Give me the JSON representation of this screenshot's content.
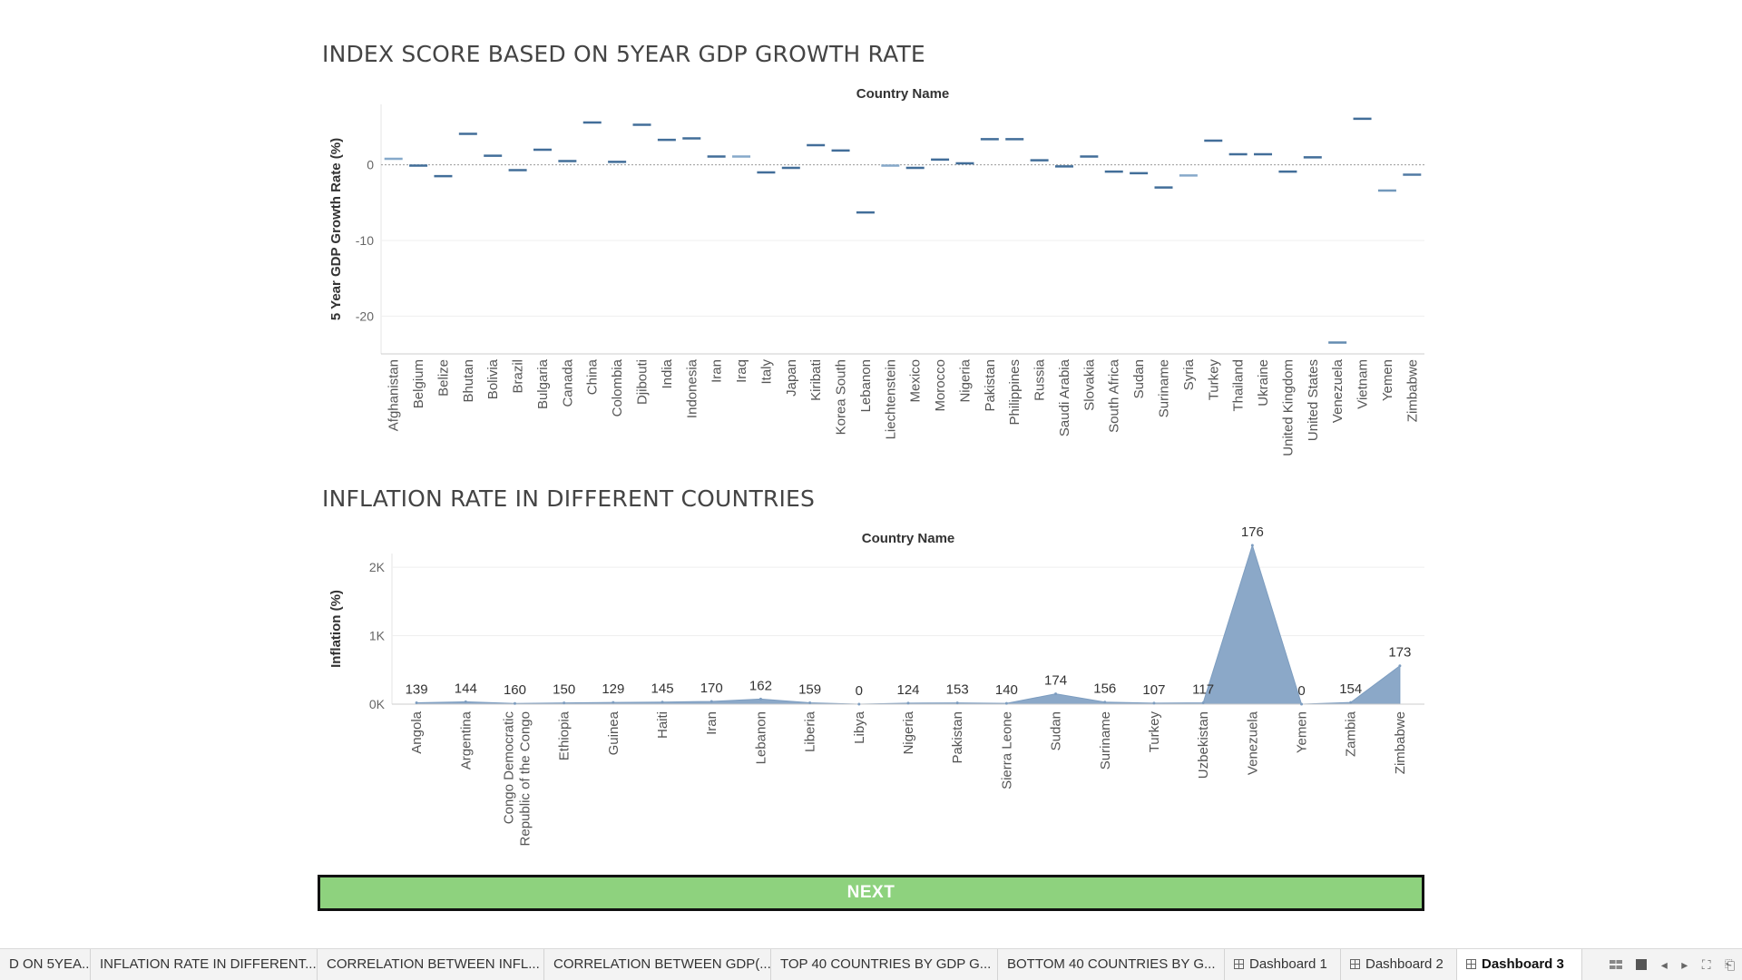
{
  "dashboard": {
    "chart1_title": "INDEX SCORE BASED ON 5YEAR GDP GROWTH RATE",
    "chart2_title": "INFLATION RATE IN DIFFERENT COUNTRIES",
    "next_label": "NEXT"
  },
  "chart_data": [
    {
      "type": "scatter",
      "mark": "dash",
      "title": "INDEX SCORE BASED ON 5YEAR GDP GROWTH RATE",
      "column_header": "Country Name",
      "ylabel": "5 Year GDP Growth Rate (%)",
      "ylim": [
        -25,
        8
      ],
      "yticks": [
        0,
        -10,
        -20
      ],
      "yticks_labels": [
        "0",
        "-10",
        "-20"
      ],
      "grid": true,
      "categories": [
        "Afghanistan",
        "Belgium",
        "Belize",
        "Bhutan",
        "Bolivia",
        "Brazil",
        "Bulgaria",
        "Canada",
        "China",
        "Colombia",
        "Djibouti",
        "India",
        "Indonesia",
        "Iran",
        "Iraq",
        "Italy",
        "Japan",
        "Kiribati",
        "Korea South",
        "Lebanon",
        "Liechtenstein",
        "Mexico",
        "Morocco",
        "Nigeria",
        "Pakistan",
        "Philippines",
        "Russia",
        "Saudi Arabia",
        "Slovakia",
        "South Africa",
        "Sudan",
        "Suriname",
        "Syria",
        "Turkey",
        "Thailand",
        "Ukraine",
        "United Kingdom",
        "United States",
        "Venezuela",
        "Vietnam",
        "Yemen",
        "Zimbabwe"
      ],
      "values": [
        0.8,
        -0.1,
        -1.5,
        4.1,
        1.2,
        -0.7,
        2.0,
        0.5,
        5.6,
        0.4,
        5.3,
        3.3,
        3.5,
        1.1,
        1.1,
        -1.0,
        -0.4,
        2.6,
        1.9,
        -6.3,
        -0.1,
        -0.4,
        0.7,
        0.2,
        3.4,
        3.4,
        0.6,
        -0.2,
        1.1,
        -0.9,
        -1.1,
        -3.0,
        -1.4,
        3.2,
        1.4,
        1.4,
        -0.9,
        1.0,
        -23.5,
        6.1,
        -3.4,
        -1.3
      ],
      "shades": [
        0.35,
        0.85,
        0.85,
        0.85,
        0.85,
        0.85,
        0.85,
        0.85,
        0.85,
        0.85,
        0.85,
        0.85,
        0.85,
        0.85,
        0.35,
        0.85,
        0.85,
        0.85,
        0.85,
        0.85,
        0.35,
        0.85,
        0.85,
        0.85,
        0.85,
        0.85,
        0.85,
        0.85,
        0.85,
        0.85,
        0.85,
        0.85,
        0.35,
        0.85,
        0.85,
        0.85,
        0.85,
        0.85,
        0.6,
        0.85,
        0.5,
        0.75
      ],
      "colors": {
        "dark": "#2e5c8a",
        "light": "#b6d3ec"
      }
    },
    {
      "type": "area",
      "title": "INFLATION RATE IN DIFFERENT COUNTRIES",
      "column_header": "Country Name",
      "ylabel": "Inflation (%)",
      "ylim": [
        0,
        2200
      ],
      "yticks": [
        0,
        1000,
        2000
      ],
      "yticks_labels": [
        "0K",
        "1K",
        "2K"
      ],
      "grid": true,
      "categories": [
        "Angola",
        "Argentina",
        "Congo Democratic Republic of the Congo",
        "Ethiopia",
        "Guinea",
        "Haiti",
        "Iran",
        "Lebanon",
        "Liberia",
        "Libya",
        "Nigeria",
        "Pakistan",
        "Sierra Leone",
        "Sudan",
        "Suriname",
        "Turkey",
        "Uzbekistan",
        "Venezuela",
        "Yemen",
        "Zambia",
        "Zimbabwe"
      ],
      "category_lines": [
        [
          "Angola"
        ],
        [
          "Argentina"
        ],
        [
          "Congo Democratic",
          "Republic of the Congo"
        ],
        [
          "Ethiopia"
        ],
        [
          "Guinea"
        ],
        [
          "Haiti"
        ],
        [
          "Iran"
        ],
        [
          "Lebanon"
        ],
        [
          "Liberia"
        ],
        [
          "Libya"
        ],
        [
          "Nigeria"
        ],
        [
          "Pakistan"
        ],
        [
          "Sierra Leone"
        ],
        [
          "Sudan"
        ],
        [
          "Suriname"
        ],
        [
          "Turkey"
        ],
        [
          "Uzbekistan"
        ],
        [
          "Venezuela"
        ],
        [
          "Yemen"
        ],
        [
          "Zambia"
        ],
        [
          "Zimbabwe"
        ]
      ],
      "values": [
        20,
        35,
        10,
        18,
        25,
        30,
        40,
        75,
        20,
        0,
        15,
        18,
        12,
        150,
        30,
        15,
        20,
        2320,
        0,
        25,
        560
      ],
      "data_labels": [
        "139",
        "144",
        "160",
        "150",
        "129",
        "145",
        "170",
        "162",
        "159",
        "0",
        "124",
        "153",
        "140",
        "174",
        "156",
        "107",
        "117",
        "176",
        "0",
        "154",
        "173"
      ],
      "colors": {
        "fill": "#8ba8c8",
        "stroke": "#7d9dc0"
      }
    }
  ],
  "tabs": [
    {
      "label": "D ON 5YEA...",
      "dashboard": false,
      "active": false
    },
    {
      "label": "INFLATION RATE IN DIFFERENT...",
      "dashboard": false,
      "active": false
    },
    {
      "label": "CORRELATION BETWEEN INFL...",
      "dashboard": false,
      "active": false
    },
    {
      "label": "CORRELATION BETWEEN GDP(...",
      "dashboard": false,
      "active": false
    },
    {
      "label": "TOP 40 COUNTRIES BY GDP G...",
      "dashboard": false,
      "active": false
    },
    {
      "label": "BOTTOM 40 COUNTRIES BY G...",
      "dashboard": false,
      "active": false
    },
    {
      "label": "Dashboard 1",
      "dashboard": true,
      "active": false
    },
    {
      "label": "Dashboard 2",
      "dashboard": true,
      "active": false
    },
    {
      "label": "Dashboard 3",
      "dashboard": true,
      "active": true
    }
  ]
}
